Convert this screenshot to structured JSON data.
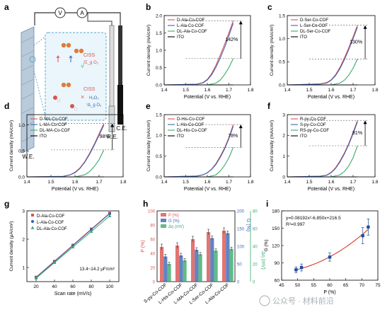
{
  "colors": {
    "red": "#d9534f",
    "blue": "#3c64b4",
    "green": "#3aaa6c",
    "black": "#000000",
    "panel_i_line": "#d83a2b",
    "panel_i_marker": "#1f4e9a"
  },
  "panel_a": {
    "letter": "a",
    "v_symbol": "V",
    "a_symbol": "A",
    "we_label": "W.E.",
    "re_label": "R.E.",
    "ce_label": "C.E.",
    "ciss_top": "CISS",
    "ciss_top_product": "³Σ_g O₂",
    "ciss_top_check": "√",
    "ciss_bottom": "CISS",
    "ciss_bottom_cross": "×",
    "h2o2": "H₂O₂",
    "o2_singlet": "¹Δ_g O₂",
    "icon": "electrochemical-cell-icon"
  },
  "panel_g_note": "13.4~14.2 μF/cm²",
  "chart_data": [
    {
      "panel": "b",
      "type": "line",
      "xlabel": "Potential (V vs. RHE)",
      "ylabel": "Current density (mA/cm²)",
      "xlim": [
        1.4,
        1.8
      ],
      "ylim": [
        0.0,
        2.0
      ],
      "xticks": [
        "1.4",
        "1.5",
        "1.6",
        "1.7",
        "1.8"
      ],
      "yticks": [
        "0.0",
        "0.5",
        "1.0",
        "1.5",
        "2.0"
      ],
      "legend_position": "top-left",
      "annotation": "142%",
      "series": [
        {
          "name": "D-Ala-Co-COF",
          "color": "red",
          "x": [
            1.4,
            1.55,
            1.58,
            1.6,
            1.62,
            1.64,
            1.66,
            1.68,
            1.7,
            1.72
          ],
          "y": [
            0.0,
            0.02,
            0.07,
            0.16,
            0.33,
            0.57,
            0.86,
            1.17,
            1.5,
            1.85
          ]
        },
        {
          "name": "L-Ala-Co-COF",
          "color": "blue",
          "x": [
            1.4,
            1.55,
            1.58,
            1.6,
            1.62,
            1.64,
            1.66,
            1.68,
            1.7,
            1.72
          ],
          "y": [
            0.0,
            0.02,
            0.06,
            0.14,
            0.29,
            0.51,
            0.78,
            1.08,
            1.42,
            1.78
          ]
        },
        {
          "name": "DL-Ala-Co-COF",
          "color": "green",
          "x": [
            1.4,
            1.6,
            1.64,
            1.66,
            1.68,
            1.7,
            1.72
          ],
          "y": [
            0.0,
            0.0,
            0.05,
            0.14,
            0.3,
            0.5,
            0.76
          ]
        },
        {
          "name": "ITO",
          "color": "black",
          "x": [
            1.4,
            1.72
          ],
          "y": [
            0.0,
            0.0
          ]
        }
      ]
    },
    {
      "panel": "c",
      "type": "line",
      "xlabel": "Potential (V vs. RHE)",
      "ylabel": "Current density (mA/cm²)",
      "xlim": [
        1.4,
        1.8
      ],
      "ylim": [
        0.0,
        1.5
      ],
      "xticks": [
        "1.4",
        "1.5",
        "1.6",
        "1.7",
        "1.8"
      ],
      "yticks": [
        "0.0",
        "0.5",
        "1.0",
        "1.5"
      ],
      "legend_position": "top-left",
      "annotation": "130%",
      "series": [
        {
          "name": "D-Ser-Co-COF",
          "color": "red",
          "x": [
            1.4,
            1.55,
            1.58,
            1.6,
            1.62,
            1.64,
            1.66,
            1.68,
            1.7,
            1.72
          ],
          "y": [
            0.0,
            0.02,
            0.05,
            0.11,
            0.22,
            0.38,
            0.58,
            0.8,
            1.04,
            1.29
          ]
        },
        {
          "name": "L-Ser-Co-COF",
          "color": "blue",
          "x": [
            1.4,
            1.55,
            1.58,
            1.6,
            1.62,
            1.64,
            1.66,
            1.68,
            1.7,
            1.72
          ],
          "y": [
            0.0,
            0.02,
            0.04,
            0.1,
            0.2,
            0.35,
            0.54,
            0.76,
            1.0,
            1.25
          ]
        },
        {
          "name": "DL-Ser-Co-COF",
          "color": "green",
          "x": [
            1.4,
            1.6,
            1.64,
            1.66,
            1.68,
            1.7,
            1.72
          ],
          "y": [
            0.0,
            0.0,
            0.04,
            0.1,
            0.21,
            0.36,
            0.56
          ]
        },
        {
          "name": "ITO",
          "color": "black",
          "x": [
            1.4,
            1.72
          ],
          "y": [
            0.0,
            0.0
          ]
        }
      ]
    },
    {
      "panel": "d",
      "type": "line",
      "xlabel": "Potential (V vs. RHE)",
      "ylabel": "Current density (mA/cm²)",
      "xlim": [
        1.4,
        1.8
      ],
      "ylim": [
        0.0,
        1.2
      ],
      "xticks": [
        "1.4",
        "1.5",
        "1.6",
        "1.7",
        "1.8"
      ],
      "yticks": [
        "0.0",
        "0.5",
        "1.0"
      ],
      "legend_position": "top-left",
      "annotation": "98%",
      "series": [
        {
          "name": "D-MA-Co-COF",
          "color": "red",
          "x": [
            1.4,
            1.55,
            1.58,
            1.6,
            1.62,
            1.64,
            1.66,
            1.68,
            1.7,
            1.72
          ],
          "y": [
            0.0,
            0.01,
            0.04,
            0.09,
            0.17,
            0.29,
            0.45,
            0.63,
            0.83,
            1.03
          ]
        },
        {
          "name": "L-MA-Co-COF",
          "color": "blue",
          "x": [
            1.4,
            1.55,
            1.58,
            1.6,
            1.62,
            1.64,
            1.66,
            1.68,
            1.7,
            1.72
          ],
          "y": [
            0.0,
            0.01,
            0.04,
            0.08,
            0.16,
            0.28,
            0.43,
            0.61,
            0.8,
            1.0
          ]
        },
        {
          "name": "DL-MA-Co-COF",
          "color": "green",
          "x": [
            1.4,
            1.6,
            1.64,
            1.66,
            1.68,
            1.7,
            1.72
          ],
          "y": [
            0.0,
            0.0,
            0.04,
            0.1,
            0.2,
            0.33,
            0.52
          ]
        },
        {
          "name": "ITO",
          "color": "black",
          "x": [
            1.4,
            1.72
          ],
          "y": [
            0.0,
            0.0
          ]
        }
      ]
    },
    {
      "panel": "e",
      "type": "line",
      "xlabel": "Potential (V vs. RHE)",
      "ylabel": "Current density (mA/cm²)",
      "xlim": [
        1.4,
        1.8
      ],
      "ylim": [
        0.0,
        1.5
      ],
      "xticks": [
        "1.4",
        "1.5",
        "1.6",
        "1.7",
        "1.8"
      ],
      "yticks": [
        "0.0",
        "0.5",
        "1.0",
        "1.5"
      ],
      "legend_position": "top-left",
      "annotation": "78%",
      "series": [
        {
          "name": "D-His-Co-COF",
          "color": "red",
          "x": [
            1.4,
            1.55,
            1.58,
            1.6,
            1.62,
            1.64,
            1.66,
            1.68,
            1.7,
            1.72
          ],
          "y": [
            0.0,
            0.02,
            0.05,
            0.1,
            0.19,
            0.32,
            0.5,
            0.7,
            0.95,
            1.26
          ]
        },
        {
          "name": "L-His-Co-COF",
          "color": "blue",
          "x": [
            1.4,
            1.55,
            1.58,
            1.6,
            1.62,
            1.64,
            1.66,
            1.68,
            1.7,
            1.72
          ],
          "y": [
            0.0,
            0.02,
            0.05,
            0.1,
            0.18,
            0.3,
            0.47,
            0.67,
            0.92,
            1.22
          ]
        },
        {
          "name": "DL-His-Co-COF",
          "color": "green",
          "x": [
            1.4,
            1.6,
            1.64,
            1.66,
            1.68,
            1.7,
            1.72
          ],
          "y": [
            0.0,
            0.0,
            0.05,
            0.14,
            0.28,
            0.46,
            0.71
          ]
        },
        {
          "name": "ITO",
          "color": "black",
          "x": [
            1.4,
            1.72
          ],
          "y": [
            0.0,
            0.0
          ]
        }
      ]
    },
    {
      "panel": "f",
      "type": "line",
      "xlabel": "Potential (V vs. RHE)",
      "ylabel": "Current density (mA/cm²)",
      "xlim": [
        1.4,
        1.8
      ],
      "ylim": [
        0.0,
        3.0
      ],
      "xticks": [
        "1.4",
        "1.5",
        "1.6",
        "1.7",
        "1.8"
      ],
      "yticks": [
        "0",
        "1",
        "2",
        "3"
      ],
      "legend_position": "top-left",
      "annotation": "81%",
      "series": [
        {
          "name": "R-py-Co-COF",
          "color": "red",
          "x": [
            1.4,
            1.55,
            1.58,
            1.6,
            1.62,
            1.64,
            1.66,
            1.68,
            1.7,
            1.72
          ],
          "y": [
            0.0,
            0.03,
            0.09,
            0.22,
            0.44,
            0.76,
            1.15,
            1.6,
            2.15,
            2.72
          ]
        },
        {
          "name": "S-py-Co-COF",
          "color": "blue",
          "x": [
            1.4,
            1.55,
            1.58,
            1.6,
            1.62,
            1.64,
            1.66,
            1.68,
            1.7,
            1.72
          ],
          "y": [
            0.0,
            0.03,
            0.08,
            0.2,
            0.41,
            0.72,
            1.1,
            1.55,
            2.08,
            2.66
          ]
        },
        {
          "name": "RS-py-Co-COF",
          "color": "green",
          "x": [
            1.4,
            1.6,
            1.64,
            1.66,
            1.68,
            1.7,
            1.72
          ],
          "y": [
            0.0,
            0.0,
            0.1,
            0.26,
            0.52,
            0.92,
            1.5
          ]
        },
        {
          "name": "ITO",
          "color": "black",
          "x": [
            1.4,
            1.72
          ],
          "y": [
            0.0,
            0.0
          ]
        }
      ]
    },
    {
      "panel": "g",
      "type": "scatter",
      "xlabel": "Scan rate (mV/s)",
      "ylabel": "Current density (μA/cm²)",
      "xlim": [
        10,
        110
      ],
      "ylim": [
        0.5,
        3.0
      ],
      "xticks": [
        "20",
        "40",
        "60",
        "80",
        "100"
      ],
      "yticks": [
        "1",
        "2",
        "3"
      ],
      "legend_position": "top-left",
      "series": [
        {
          "name": "D-Ala-Co-COF",
          "color": "red",
          "marker": "square",
          "x": [
            20,
            40,
            60,
            80,
            100
          ],
          "y": [
            0.66,
            1.22,
            1.79,
            2.36,
            2.92
          ]
        },
        {
          "name": "L-Ala-Co-COF",
          "color": "blue",
          "marker": "circle",
          "x": [
            20,
            40,
            60,
            80,
            100
          ],
          "y": [
            0.64,
            1.2,
            1.77,
            2.34,
            2.9
          ]
        },
        {
          "name": "DL-Ala-Co-COF",
          "color": "green",
          "marker": "triangle",
          "x": [
            20,
            40,
            60,
            80,
            100
          ],
          "y": [
            0.62,
            1.17,
            1.72,
            2.27,
            2.82
          ]
        }
      ]
    },
    {
      "panel": "h",
      "type": "bar",
      "ylabel_left": "P (%)",
      "ylabel_right1": "G (%)",
      "ylabel_right2": "Δη (mV)",
      "ylim_left": [
        0,
        100
      ],
      "ylim_right1": [
        0,
        200
      ],
      "ylim_right2": [
        0,
        80
      ],
      "yticks_left": [
        "0",
        "20",
        "40",
        "60",
        "80",
        "100"
      ],
      "yticks_right1": [
        "0",
        "50",
        "100",
        "150",
        "200"
      ],
      "yticks_right2": [
        "0",
        "20",
        "40",
        "60",
        "80"
      ],
      "legend_position": "top-left",
      "categories": [
        "S-py-Co-COF",
        "L-His-Co-COF",
        "L-MA-Co-COF",
        "L-Ser-Co-COF",
        "L-Ala-Co-COF"
      ],
      "series": [
        {
          "name": "P (%)",
          "color": "red",
          "axis": "left",
          "values": [
            49,
            51,
            60,
            70,
            72
          ],
          "errors": [
            4,
            4,
            4,
            4,
            4
          ]
        },
        {
          "name": "G (%)",
          "color": "blue",
          "axis": "right1",
          "values": [
            71,
            74,
            90,
            123,
            137
          ],
          "errors": [
            6,
            6,
            6,
            6,
            6
          ]
        },
        {
          "name": "Δη (mV)",
          "color": "green",
          "axis": "right2",
          "values": [
            20,
            24,
            31,
            35,
            37
          ],
          "errors": [
            2,
            2,
            2,
            2,
            2
          ]
        }
      ]
    },
    {
      "panel": "i",
      "type": "scatter",
      "xlabel": "P (%)",
      "ylabel": "G (%)",
      "xlim": [
        45,
        75
      ],
      "ylim": [
        60,
        180
      ],
      "xticks": [
        "45",
        "50",
        "55",
        "60",
        "65",
        "70",
        "75"
      ],
      "yticks": [
        "60",
        "90",
        "120",
        "150",
        "180"
      ],
      "equation": "y=0.08192x²-6.850x+216.5",
      "r_squared": "R²=0.997",
      "points": {
        "x": [
          49.5,
          51.2,
          60.0,
          70.3,
          72.0
        ],
        "y": [
          78,
          82,
          100,
          137,
          152
        ],
        "yerr": [
          5,
          6,
          7,
          14,
          14
        ]
      },
      "fit": {
        "a": 0.08192,
        "b": -6.85,
        "c": 216.5,
        "x_range": [
          49,
          72
        ]
      }
    }
  ],
  "watermark": "公众号 · 材料前沿"
}
